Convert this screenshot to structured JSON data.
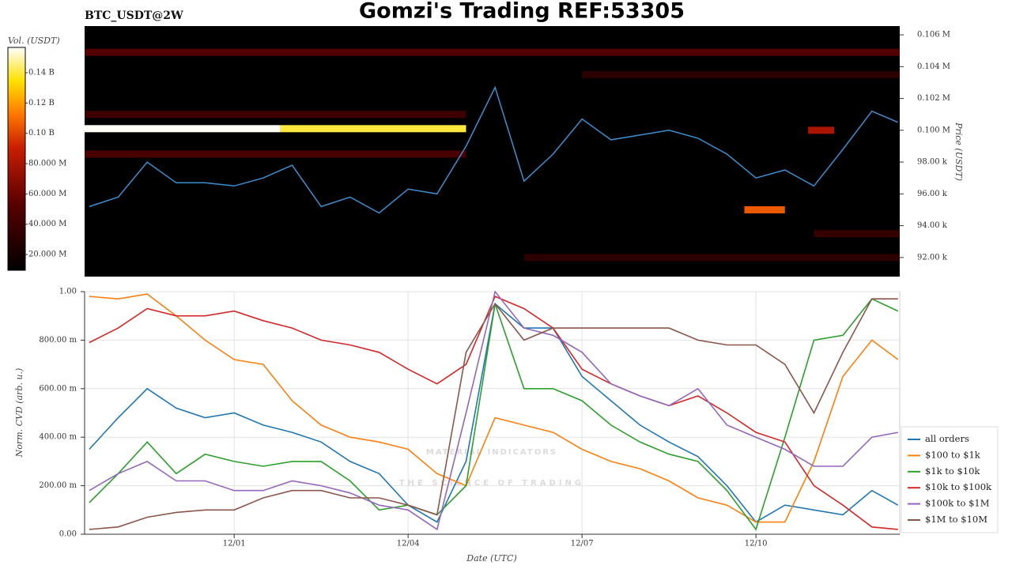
{
  "header": {
    "title": "Gomzi's Trading REF:53305"
  },
  "watermark": [
    "MATERIAL INDICATORS",
    "THE SCIENCE OF TRADING"
  ],
  "chart_data": [
    {
      "type": "heatmap",
      "title": "BTC_USDT@2W",
      "ylabel": "Price (USDT)",
      "xlim": [
        -1.58,
        12.48
      ],
      "ylim": [
        90800,
        106550
      ],
      "yticks": [
        {
          "value": 106000,
          "label": "0.106 M"
        },
        {
          "value": 104000,
          "label": "0.104 M"
        },
        {
          "value": 102000,
          "label": "0.102 M"
        },
        {
          "value": 100000,
          "label": "0.100 M"
        },
        {
          "value": 98000,
          "label": "98.00 k"
        },
        {
          "value": 96000,
          "label": "96.00 k"
        },
        {
          "value": 94000,
          "label": "94.00 k"
        },
        {
          "value": 92000,
          "label": "92.00 k"
        }
      ],
      "colorbar": {
        "label": "Vol. (USDT)",
        "lim": [
          9600000,
          156700000
        ],
        "ticks": [
          {
            "value": 140000000,
            "label": "0.14 B"
          },
          {
            "value": 120000000,
            "label": "0.12 B"
          },
          {
            "value": 100000000,
            "label": "0.10 B"
          },
          {
            "value": 80000000,
            "label": "80.000 M"
          },
          {
            "value": 60000000,
            "label": "60.000 M"
          },
          {
            "value": 40000000,
            "label": "40.000 M"
          },
          {
            "value": 20000000,
            "label": "20.000 M"
          }
        ]
      },
      "bands": [
        {
          "price": 104900,
          "x": [
            -1.58,
            12.48
          ],
          "volume": 50000000
        },
        {
          "price": 103500,
          "x": [
            7,
            12.48
          ],
          "volume": 30000000
        },
        {
          "price": 101000,
          "x": [
            -1.58,
            5
          ],
          "volume": 40000000
        },
        {
          "price": 98500,
          "x": [
            -1.58,
            5
          ],
          "volume": 45000000
        },
        {
          "price": 93500,
          "x": [
            11,
            12.48
          ],
          "volume": 35000000
        },
        {
          "price": 92000,
          "x": [
            6,
            12.48
          ],
          "volume": 30000000
        },
        {
          "price": 100100,
          "x": [
            -1.58,
            1.8
          ],
          "volume": 156000000
        },
        {
          "price": 100100,
          "x": [
            1.8,
            5
          ],
          "volume": 140000000
        },
        {
          "price": 95000,
          "x": [
            9.8,
            10.5
          ],
          "volume": 105000000
        },
        {
          "price": 100000,
          "x": [
            10.9,
            11.35
          ],
          "volume": 80000000
        }
      ],
      "x": [
        -1.5,
        -1,
        -0.5,
        0,
        0.5,
        1,
        1.5,
        2,
        2.5,
        3,
        3.5,
        4,
        4.5,
        5,
        5.5,
        6,
        6.5,
        7,
        7.5,
        8,
        8.5,
        9,
        9.5,
        10,
        10.5,
        11,
        11.5,
        12,
        12.45
      ],
      "price": {
        "color": "#3a8fd0",
        "values": [
          95200,
          95800,
          98000,
          96700,
          96700,
          96500,
          97000,
          97800,
          95200,
          95800,
          94800,
          96300,
          96000,
          99000,
          102700,
          96800,
          98500,
          100700,
          99400,
          99700,
          100000,
          99500,
          98500,
          97000,
          97500,
          96500,
          98800,
          101200,
          100500
        ]
      }
    },
    {
      "type": "line",
      "xlabel": "Date (UTC)",
      "ylabel": "Norm. CVD (arb. u.)",
      "grid": true,
      "legend": "right",
      "xlim": [
        -1.58,
        12.48
      ],
      "ylim": [
        0,
        1
      ],
      "xticks": [
        {
          "value": 1,
          "label": "12/01"
        },
        {
          "value": 4,
          "label": "12/04"
        },
        {
          "value": 7,
          "label": "12/07"
        },
        {
          "value": 10,
          "label": "12/10"
        }
      ],
      "yticks": [
        {
          "value": 0,
          "label": "0.00"
        },
        {
          "value": 0.2,
          "label": "200.00 m"
        },
        {
          "value": 0.4,
          "label": "400.00 m"
        },
        {
          "value": 0.6,
          "label": "600.00 m"
        },
        {
          "value": 0.8,
          "label": "800.00 m"
        },
        {
          "value": 1,
          "label": "1.00"
        }
      ],
      "x": [
        -1.5,
        -1,
        -0.5,
        0,
        0.5,
        1,
        1.5,
        2,
        2.5,
        3,
        3.5,
        4,
        4.5,
        5,
        5.5,
        6,
        6.5,
        7,
        7.5,
        8,
        8.5,
        9,
        9.5,
        10,
        10.5,
        11,
        11.5,
        12,
        12.45
      ],
      "series": [
        {
          "name": "all orders",
          "color": "#1f77b4",
          "values": [
            0.35,
            0.48,
            0.6,
            0.52,
            0.48,
            0.5,
            0.45,
            0.42,
            0.38,
            0.3,
            0.25,
            0.12,
            0.05,
            0.3,
            0.95,
            0.85,
            0.85,
            0.65,
            0.55,
            0.45,
            0.38,
            0.32,
            0.2,
            0.05,
            0.12,
            0.1,
            0.08,
            0.18,
            0.12
          ]
        },
        {
          "name": "$100 to $1k",
          "color": "#ff7f0e",
          "values": [
            0.98,
            0.97,
            0.99,
            0.9,
            0.8,
            0.72,
            0.7,
            0.55,
            0.45,
            0.4,
            0.38,
            0.35,
            0.25,
            0.2,
            0.48,
            0.45,
            0.42,
            0.35,
            0.3,
            0.27,
            0.22,
            0.15,
            0.12,
            0.05,
            0.05,
            0.3,
            0.65,
            0.8,
            0.72
          ]
        },
        {
          "name": "$1k to $10k",
          "color": "#2ca02c",
          "values": [
            0.13,
            0.25,
            0.38,
            0.25,
            0.33,
            0.3,
            0.28,
            0.3,
            0.3,
            0.22,
            0.1,
            0.12,
            0.08,
            0.2,
            0.95,
            0.6,
            0.6,
            0.55,
            0.45,
            0.38,
            0.33,
            0.3,
            0.18,
            0.02,
            0.4,
            0.8,
            0.82,
            0.97,
            0.92
          ]
        },
        {
          "name": "$10k to $100k",
          "color": "#d62728",
          "values": [
            0.79,
            0.85,
            0.93,
            0.9,
            0.9,
            0.92,
            0.88,
            0.85,
            0.8,
            0.78,
            0.75,
            0.68,
            0.62,
            0.7,
            0.98,
            0.93,
            0.85,
            0.68,
            0.62,
            0.57,
            0.53,
            0.57,
            0.5,
            0.42,
            0.38,
            0.2,
            0.12,
            0.03,
            0.02
          ]
        },
        {
          "name": "$100k to $1M",
          "color": "#9467bd",
          "values": [
            0.18,
            0.25,
            0.3,
            0.22,
            0.22,
            0.18,
            0.18,
            0.22,
            0.2,
            0.17,
            0.12,
            0.1,
            0.02,
            0.5,
            1.0,
            0.85,
            0.82,
            0.75,
            0.62,
            0.57,
            0.53,
            0.6,
            0.45,
            0.4,
            0.35,
            0.28,
            0.28,
            0.4,
            0.42
          ]
        },
        {
          "name": "$1M to $10M",
          "color": "#8c564b",
          "values": [
            0.02,
            0.03,
            0.07,
            0.09,
            0.1,
            0.1,
            0.15,
            0.18,
            0.18,
            0.15,
            0.15,
            0.12,
            0.08,
            0.75,
            0.95,
            0.8,
            0.85,
            0.85,
            0.85,
            0.85,
            0.85,
            0.8,
            0.78,
            0.78,
            0.7,
            0.5,
            0.75,
            0.97,
            0.97
          ]
        }
      ]
    }
  ]
}
